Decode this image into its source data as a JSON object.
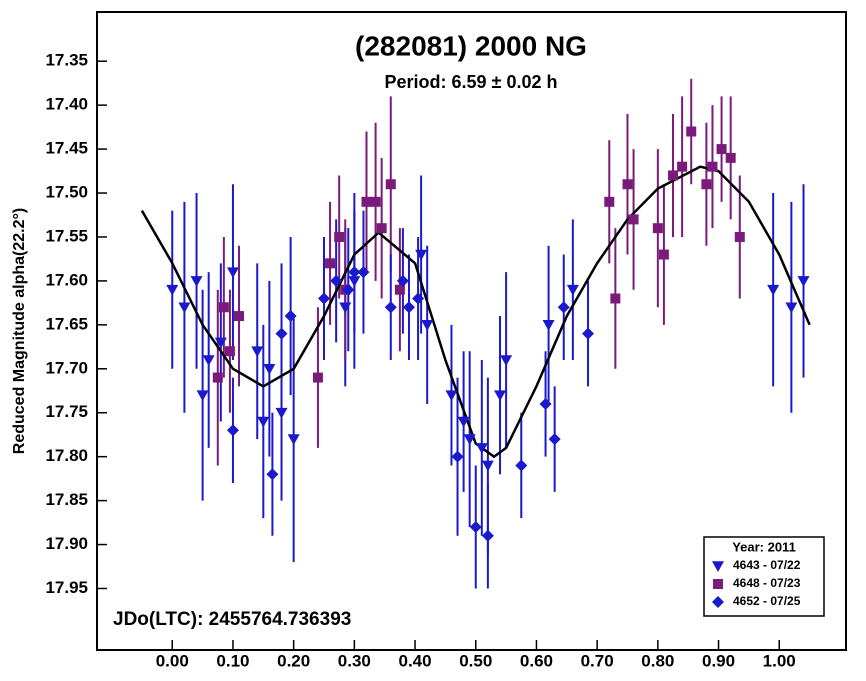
{
  "chart_data": {
    "type": "scatter",
    "title": "(282081) 2000 NG",
    "subtitle": "Period: 6.59 ± 0.02 h",
    "y_label": "Reduced Magnitude alpha(22.2°)",
    "annotation": "JDo(LTC): 2455764.736393",
    "legend_title": "Year: 2011",
    "legend_position": "lower right",
    "xlim": [
      -0.124,
      1.11
    ],
    "ylim": [
      18.02,
      17.294
    ],
    "xticks": [
      {
        "value": 0,
        "label": "0.00"
      },
      {
        "value": 0.1,
        "label": "0.10"
      },
      {
        "value": 0.2,
        "label": "0.20"
      },
      {
        "value": 0.3,
        "label": "0.30"
      },
      {
        "value": 0.4,
        "label": "0.40"
      },
      {
        "value": 0.5,
        "label": "0.50"
      },
      {
        "value": 0.6,
        "label": "0.60"
      },
      {
        "value": 0.7,
        "label": "0.70"
      },
      {
        "value": 0.8,
        "label": "0.80"
      },
      {
        "value": 0.9,
        "label": "0.90"
      },
      {
        "value": 1,
        "label": "1.00"
      }
    ],
    "yticks": [
      17.35,
      {
        "value": 17.4,
        "label": "17.40"
      },
      17.45,
      {
        "value": 17.5,
        "label": "17.50"
      },
      17.55,
      {
        "value": 17.6,
        "label": "17.60"
      },
      17.65,
      {
        "value": 17.7,
        "label": "17.70"
      },
      17.75,
      {
        "value": 17.8,
        "label": "17.80"
      },
      17.85,
      {
        "value": 17.9,
        "label": "17.90"
      },
      17.95
    ],
    "series": [
      {
        "name": "4643 - 07/22",
        "color": "#1a1acc",
        "marker": "triangle-down",
        "x": [
          0.0,
          0.02,
          0.04,
          0.05,
          0.06,
          0.08,
          0.1,
          0.14,
          0.15,
          0.16,
          0.18,
          0.2,
          0.285,
          0.3,
          0.41,
          0.42,
          0.46,
          0.48,
          0.49,
          0.51,
          0.52,
          0.54,
          0.55,
          0.62,
          0.66,
          0.99,
          1.02,
          1.04
        ],
        "values": [
          17.61,
          17.63,
          17.6,
          17.73,
          17.69,
          17.67,
          17.59,
          17.68,
          17.76,
          17.7,
          17.75,
          17.78,
          17.63,
          17.6,
          17.57,
          17.65,
          17.73,
          17.76,
          17.78,
          17.79,
          17.81,
          17.73,
          17.69,
          17.65,
          17.61,
          17.61,
          17.63,
          17.6
        ],
        "errors": [
          0.09,
          0.12,
          0.1,
          0.12,
          0.1,
          0.09,
          0.1,
          0.1,
          0.11,
          0.1,
          0.1,
          0.14,
          0.09,
          0.1,
          0.09,
          0.09,
          0.08,
          0.08,
          0.1,
          0.1,
          0.1,
          0.09,
          0.1,
          0.09,
          0.08,
          0.11,
          0.12,
          0.11
        ]
      },
      {
        "name": "4648 - 07/23",
        "color": "#7a1a7a",
        "marker": "square",
        "x": [
          0.075,
          0.085,
          0.095,
          0.11,
          0.24,
          0.26,
          0.275,
          0.285,
          0.32,
          0.335,
          0.345,
          0.36,
          0.375,
          0.72,
          0.73,
          0.75,
          0.76,
          0.8,
          0.81,
          0.825,
          0.84,
          0.855,
          0.88,
          0.89,
          0.905,
          0.92,
          0.935
        ],
        "values": [
          17.71,
          17.63,
          17.68,
          17.64,
          17.71,
          17.58,
          17.55,
          17.61,
          17.51,
          17.51,
          17.54,
          17.49,
          17.61,
          17.51,
          17.62,
          17.49,
          17.53,
          17.54,
          17.57,
          17.48,
          17.47,
          17.43,
          17.49,
          17.47,
          17.45,
          17.46,
          17.55
        ],
        "errors": [
          0.1,
          0.08,
          0.07,
          0.08,
          0.08,
          0.07,
          0.07,
          0.08,
          0.08,
          0.09,
          0.08,
          0.1,
          0.07,
          0.07,
          0.08,
          0.08,
          0.08,
          0.09,
          0.08,
          0.07,
          0.08,
          0.06,
          0.07,
          0.07,
          0.06,
          0.07,
          0.07
        ]
      },
      {
        "name": "4652 - 07/25",
        "color": "#1a1acc",
        "marker": "diamond",
        "x": [
          0.1,
          0.165,
          0.18,
          0.195,
          0.25,
          0.27,
          0.29,
          0.3,
          0.315,
          0.36,
          0.38,
          0.39,
          0.405,
          0.47,
          0.5,
          0.52,
          0.575,
          0.615,
          0.63,
          0.645,
          0.685
        ],
        "values": [
          17.77,
          17.82,
          17.66,
          17.64,
          17.62,
          17.6,
          17.61,
          17.59,
          17.59,
          17.63,
          17.6,
          17.63,
          17.62,
          17.8,
          17.88,
          17.89,
          17.81,
          17.74,
          17.78,
          17.63,
          17.66
        ],
        "errors": [
          0.06,
          0.07,
          0.08,
          0.09,
          0.07,
          0.07,
          0.07,
          0.07,
          0.07,
          0.06,
          0.06,
          0.06,
          0.07,
          0.09,
          0.07,
          0.06,
          0.06,
          0.06,
          0.06,
          0.06,
          0.06
        ]
      }
    ],
    "fit": {
      "color": "#000000",
      "x": [
        -0.05,
        0.0,
        0.05,
        0.1,
        0.15,
        0.2,
        0.25,
        0.3,
        0.34,
        0.4,
        0.45,
        0.5,
        0.53,
        0.55,
        0.6,
        0.65,
        0.7,
        0.75,
        0.8,
        0.87,
        0.9,
        0.95,
        1.0,
        1.05
      ],
      "values": [
        17.52,
        17.58,
        17.65,
        17.7,
        17.72,
        17.7,
        17.64,
        17.57,
        17.545,
        17.58,
        17.69,
        17.785,
        17.8,
        17.79,
        17.72,
        17.64,
        17.58,
        17.53,
        17.495,
        17.47,
        17.475,
        17.51,
        17.57,
        17.65
      ]
    }
  }
}
